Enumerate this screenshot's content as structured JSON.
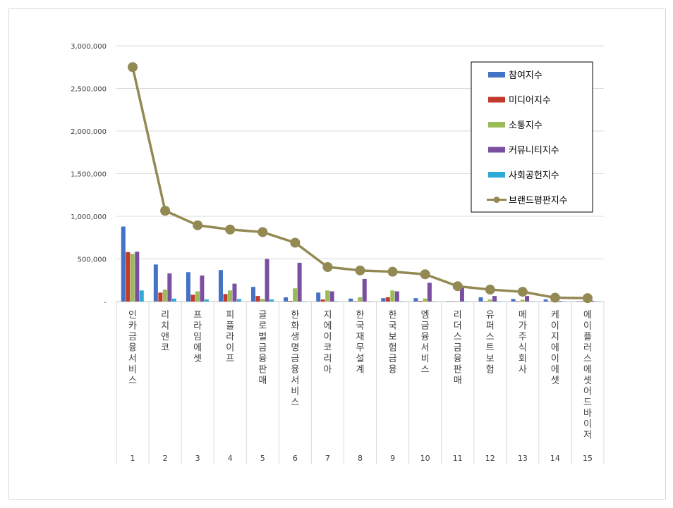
{
  "chart_data": {
    "type": "bar",
    "title": "",
    "xlabel": "",
    "ylabel": "",
    "ylim": [
      0,
      3000000
    ],
    "yticks": [
      "-",
      "500,000",
      "1,000,000",
      "1,500,000",
      "2,000,000",
      "2,500,000",
      "3,000,000"
    ],
    "ytick_values": [
      0,
      500000,
      1000000,
      1500000,
      2000000,
      2500000,
      3000000
    ],
    "grid": true,
    "legend_position": "top-right",
    "categories": [
      "인카금융서비스",
      "리치앤코",
      "프라임에셋",
      "피플라이프",
      "글로벌금융판매",
      "한화생명금융서비스",
      "지에이코리아",
      "한국재무설계",
      "한국보험금융",
      "엠금융서비스",
      "리더스금융판매",
      "유퍼스트보험",
      "메가주식회사",
      "케이지에이에셋",
      "에이플러스에셋어드바이저"
    ],
    "ranks": [
      "1",
      "2",
      "3",
      "4",
      "5",
      "6",
      "7",
      "8",
      "9",
      "10",
      "11",
      "12",
      "13",
      "14",
      "15"
    ],
    "series": [
      {
        "name": "참여지수",
        "kind": "bar",
        "color": "#4472c4",
        "values": [
          880000,
          435000,
          345000,
          370000,
          172000,
          50000,
          105000,
          35000,
          40000,
          40000,
          5000,
          50000,
          30000,
          25000,
          5000
        ]
      },
      {
        "name": "미디어지수",
        "kind": "bar",
        "color": "#c0392b",
        "values": [
          580000,
          105000,
          80000,
          88000,
          65000,
          8000,
          25000,
          5000,
          50000,
          8000,
          3000,
          5000,
          5000,
          2000,
          5000
        ]
      },
      {
        "name": "소통지수",
        "kind": "bar",
        "color": "#9bbb59",
        "values": [
          560000,
          140000,
          120000,
          130000,
          30000,
          155000,
          130000,
          50000,
          130000,
          35000,
          5000,
          25000,
          20000,
          3000,
          3000
        ]
      },
      {
        "name": "커뮤니티지수",
        "kind": "bar",
        "color": "#7b4fa0",
        "values": [
          585000,
          330000,
          305000,
          210000,
          500000,
          455000,
          120000,
          265000,
          120000,
          220000,
          165000,
          65000,
          65000,
          8000,
          10000
        ]
      },
      {
        "name": "사회공헌지수",
        "kind": "bar",
        "color": "#2eaad6",
        "values": [
          130000,
          35000,
          25000,
          30000,
          25000,
          3000,
          5000,
          3000,
          3000,
          3000,
          3000,
          3000,
          3000,
          3000,
          3000
        ]
      },
      {
        "name": "브랜드평판지수",
        "kind": "line",
        "color": "#938953",
        "values": [
          2750000,
          1065000,
          895000,
          845000,
          815000,
          690000,
          405000,
          365000,
          350000,
          320000,
          180000,
          140000,
          115000,
          45000,
          40000
        ]
      }
    ]
  }
}
